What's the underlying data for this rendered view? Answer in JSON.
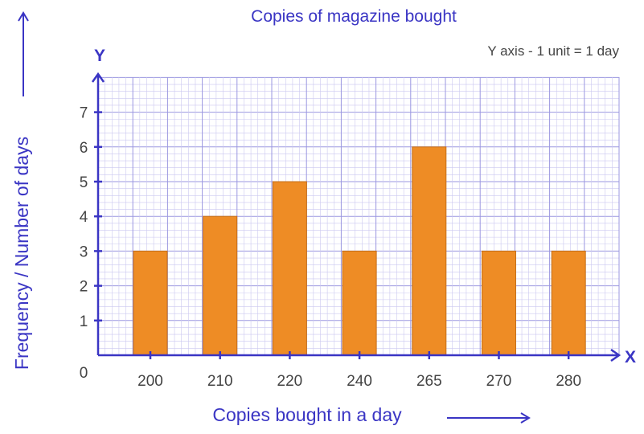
{
  "chart_data": {
    "type": "bar",
    "title": "Copies of magazine bought",
    "note": "Y axis - 1 unit = 1 day",
    "xlabel": "Copies bought in a day",
    "ylabel": "Frequency / Number of days",
    "x_axis_letter": "X",
    "y_axis_letter": "Y",
    "origin_label": "0",
    "categories": [
      "200",
      "210",
      "220",
      "240",
      "265",
      "270",
      "280"
    ],
    "values": [
      3,
      4,
      5,
      3,
      6,
      3,
      3
    ],
    "y_ticks": [
      "1",
      "2",
      "3",
      "4",
      "5",
      "6",
      "7"
    ],
    "ylim": [
      0,
      8
    ],
    "grid": true,
    "colors": {
      "bar": "#ee8c25",
      "bar_stroke": "#c46f1a",
      "axis": "#3a35c4",
      "grid_minor": "#cbc8f0",
      "grid_major": "#9b97e0"
    }
  }
}
